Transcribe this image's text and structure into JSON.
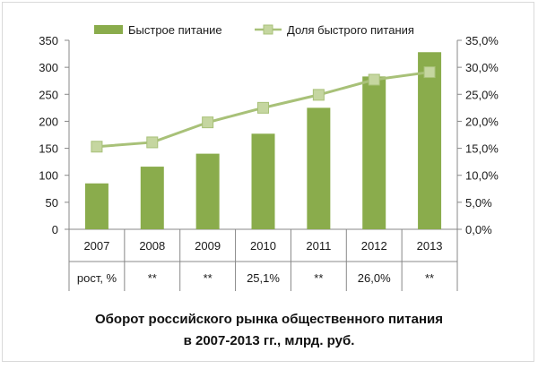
{
  "chart_data": {
    "type": "bar",
    "title_lines": [
      "Оборот российского рынка общественного питания",
      "в 2007-2013 гг., млрд. руб."
    ],
    "categories": [
      "2007",
      "2008",
      "2009",
      "2010",
      "2011",
      "2012",
      "2013"
    ],
    "series": [
      {
        "name": "Быстрое питание",
        "type": "bar",
        "axis": "left",
        "color": "#8aac4c",
        "values": [
          85,
          116,
          140,
          177,
          225,
          283,
          328
        ]
      },
      {
        "name": "Доля быстрого питания",
        "type": "line",
        "axis": "right",
        "color": "#a8c178",
        "marker_color": "#c5d6a0",
        "values": [
          15.3,
          16.1,
          19.8,
          22.5,
          24.9,
          27.7,
          29.1
        ]
      }
    ],
    "y_left": {
      "min": 0,
      "max": 350,
      "ticks": [
        "0",
        "50",
        "100",
        "150",
        "200",
        "250",
        "300",
        "350"
      ]
    },
    "y_right": {
      "min": 0,
      "max": 35,
      "ticks": [
        "0,0%",
        "5,0%",
        "10,0%",
        "15,0%",
        "20,0%",
        "25,0%",
        "30,0%",
        "35,0%"
      ]
    },
    "legend_position": "top",
    "grid": false,
    "table": {
      "row_label": "рост, %",
      "values": [
        "**",
        "**",
        "25,1%",
        "**",
        "26,0%",
        "**"
      ]
    }
  }
}
